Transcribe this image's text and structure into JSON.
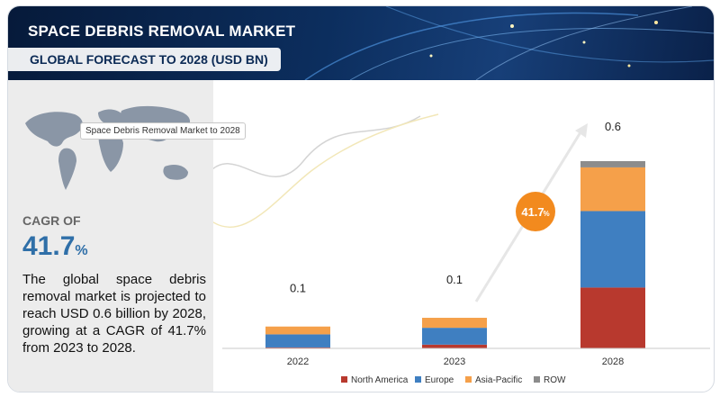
{
  "header": {
    "title": "SPACE DEBRIS REMOVAL MARKET",
    "subtitle": "GLOBAL FORECAST TO 2028 (USD BN)"
  },
  "sidebar": {
    "map_label": "Space Debris Removal Market to 2028",
    "cagr_label": "CAGR OF",
    "cagr_value": "41.7",
    "cagr_unit": "%",
    "description": "The global space debris removal market is projected to reach USD 0.6 billion by 2028, growing at a CAGR of 41.7% from 2023 to 2028."
  },
  "colors": {
    "north_america": "#b8392e",
    "europe": "#3f7fc1",
    "asia_pacific": "#f5a04a",
    "row": "#8c8c8c",
    "cagr_badge": "#f28a1e"
  },
  "chart_data": {
    "type": "bar",
    "stacked": true,
    "categories": [
      "2022",
      "2023",
      "2028"
    ],
    "totals_labels": [
      "0.1",
      "0.1",
      "0.6"
    ],
    "series": [
      {
        "name": "North America",
        "color": "#b8392e",
        "values": [
          0.003,
          0.012,
          0.195
        ]
      },
      {
        "name": "Europe",
        "color": "#3f7fc1",
        "values": [
          0.042,
          0.054,
          0.245
        ]
      },
      {
        "name": "Asia-Pacific",
        "color": "#f5a04a",
        "values": [
          0.025,
          0.032,
          0.14
        ]
      },
      {
        "name": "ROW",
        "color": "#8c8c8c",
        "values": [
          0.0,
          0.0,
          0.02
        ]
      }
    ],
    "ylim": [
      0,
      0.6
    ],
    "grid": false,
    "legend": "bottom",
    "annotation": {
      "label": "41.7",
      "unit": "%"
    }
  }
}
